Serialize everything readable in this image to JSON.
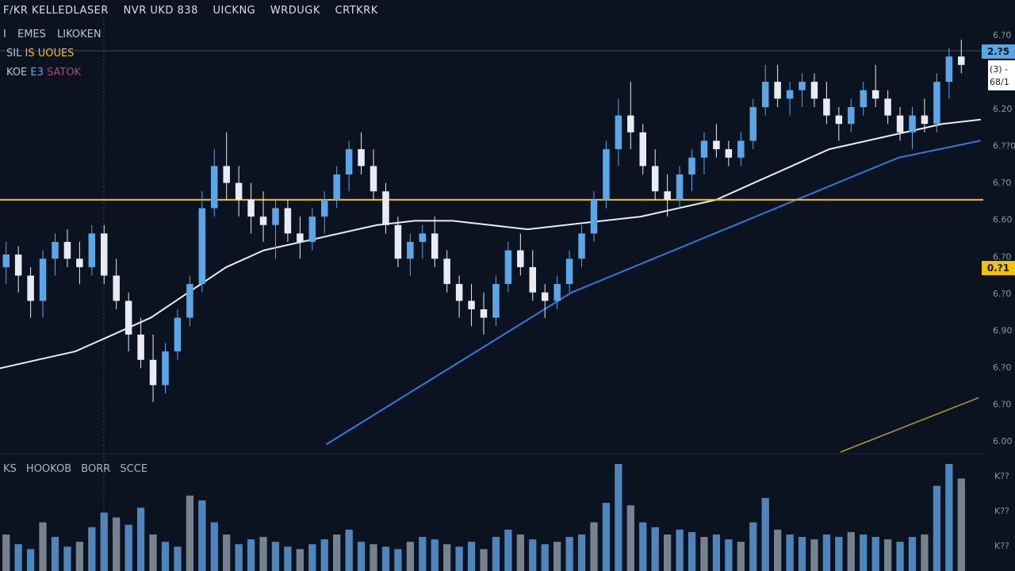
{
  "header": {
    "title_parts": [
      "F/KR KELLEDLASER",
      "NVR UKD 838",
      "UICKNG",
      "WRDUGK",
      "CRTKRK"
    ],
    "row2": [
      "I",
      "EMES",
      "LIKOKEN"
    ],
    "row3": {
      "prefix": "SIL",
      "value": "IS UOUES"
    },
    "row4": {
      "prefix": "KOE",
      "value_a": "E3",
      "value_b": "SATOK"
    }
  },
  "volume_label": [
    "KS",
    "HOOKOB",
    "BORR",
    "SCCE"
  ],
  "price_axis": {
    "labels": [
      "6.?0",
      "6.?2",
      "6.20",
      "6.??0",
      "6.?0",
      "6.60",
      "6.?0",
      "6.?0",
      "6.90",
      "6.?0",
      "6.?0",
      "6.00"
    ],
    "volume_labels": [
      "K??",
      "K??",
      "K??"
    ]
  },
  "tags": {
    "last_price": "2.?5",
    "mini_line1": "(3) -",
    "mini_line2": "68/1",
    "hline_price": "0.?1"
  },
  "colors": {
    "background": "#0b1220",
    "up_candle": "#5aa6e6",
    "down_candle": "#e8ecf2",
    "ma_fast": "#e8ecf2",
    "ma_slow": "#2f7ae0",
    "ma_long": "#b89a2a",
    "hline": "#f2c400",
    "volume_up": "#5a9bd8",
    "volume_down": "#8c96a3"
  },
  "chart_data": {
    "type": "candlestick",
    "y_range": [
      6.0,
      6.96
    ],
    "horizontal_line": 6.58,
    "candles": [
      [
        6.42,
        6.48,
        6.38,
        6.45
      ],
      [
        6.45,
        6.47,
        6.36,
        6.4
      ],
      [
        6.4,
        6.42,
        6.3,
        6.34
      ],
      [
        6.34,
        6.46,
        6.3,
        6.44
      ],
      [
        6.44,
        6.5,
        6.4,
        6.48
      ],
      [
        6.48,
        6.51,
        6.42,
        6.44
      ],
      [
        6.44,
        6.48,
        6.38,
        6.42
      ],
      [
        6.42,
        6.52,
        6.4,
        6.5
      ],
      [
        6.5,
        6.52,
        6.38,
        6.4
      ],
      [
        6.4,
        6.44,
        6.32,
        6.34
      ],
      [
        6.34,
        6.36,
        6.22,
        6.26
      ],
      [
        6.26,
        6.3,
        6.18,
        6.2
      ],
      [
        6.2,
        6.26,
        6.1,
        6.14
      ],
      [
        6.14,
        6.24,
        6.12,
        6.22
      ],
      [
        6.22,
        6.32,
        6.2,
        6.3
      ],
      [
        6.3,
        6.4,
        6.28,
        6.38
      ],
      [
        6.38,
        6.6,
        6.36,
        6.56
      ],
      [
        6.56,
        6.7,
        6.54,
        6.66
      ],
      [
        6.66,
        6.74,
        6.58,
        6.62
      ],
      [
        6.62,
        6.66,
        6.54,
        6.58
      ],
      [
        6.58,
        6.62,
        6.5,
        6.54
      ],
      [
        6.54,
        6.6,
        6.48,
        6.52
      ],
      [
        6.52,
        6.58,
        6.44,
        6.56
      ],
      [
        6.56,
        6.58,
        6.48,
        6.5
      ],
      [
        6.5,
        6.54,
        6.44,
        6.48
      ],
      [
        6.48,
        6.56,
        6.46,
        6.54
      ],
      [
        6.54,
        6.6,
        6.5,
        6.58
      ],
      [
        6.58,
        6.66,
        6.56,
        6.64
      ],
      [
        6.64,
        6.72,
        6.6,
        6.7
      ],
      [
        6.7,
        6.74,
        6.64,
        6.66
      ],
      [
        6.66,
        6.7,
        6.58,
        6.6
      ],
      [
        6.6,
        6.62,
        6.5,
        6.52
      ],
      [
        6.52,
        6.54,
        6.42,
        6.44
      ],
      [
        6.44,
        6.5,
        6.4,
        6.48
      ],
      [
        6.48,
        6.52,
        6.44,
        6.5
      ],
      [
        6.5,
        6.54,
        6.42,
        6.44
      ],
      [
        6.44,
        6.46,
        6.36,
        6.38
      ],
      [
        6.38,
        6.4,
        6.3,
        6.34
      ],
      [
        6.34,
        6.38,
        6.28,
        6.32
      ],
      [
        6.32,
        6.36,
        6.26,
        6.3
      ],
      [
        6.3,
        6.4,
        6.28,
        6.38
      ],
      [
        6.38,
        6.48,
        6.36,
        6.46
      ],
      [
        6.46,
        6.5,
        6.4,
        6.42
      ],
      [
        6.42,
        6.46,
        6.34,
        6.36
      ],
      [
        6.36,
        6.38,
        6.3,
        6.34
      ],
      [
        6.34,
        6.4,
        6.32,
        6.38
      ],
      [
        6.38,
        6.46,
        6.36,
        6.44
      ],
      [
        6.44,
        6.52,
        6.42,
        6.5
      ],
      [
        6.5,
        6.6,
        6.48,
        6.58
      ],
      [
        6.58,
        6.72,
        6.56,
        6.7
      ],
      [
        6.7,
        6.82,
        6.66,
        6.78
      ],
      [
        6.78,
        6.86,
        6.7,
        6.74
      ],
      [
        6.74,
        6.76,
        6.64,
        6.66
      ],
      [
        6.66,
        6.7,
        6.58,
        6.6
      ],
      [
        6.6,
        6.64,
        6.54,
        6.58
      ],
      [
        6.58,
        6.66,
        6.56,
        6.64
      ],
      [
        6.64,
        6.7,
        6.6,
        6.68
      ],
      [
        6.68,
        6.74,
        6.64,
        6.72
      ],
      [
        6.72,
        6.76,
        6.68,
        6.7
      ],
      [
        6.7,
        6.72,
        6.66,
        6.68
      ],
      [
        6.68,
        6.74,
        6.66,
        6.72
      ],
      [
        6.72,
        6.82,
        6.7,
        6.8
      ],
      [
        6.8,
        6.9,
        6.78,
        6.86
      ],
      [
        6.86,
        6.9,
        6.8,
        6.82
      ],
      [
        6.82,
        6.86,
        6.78,
        6.84
      ],
      [
        6.84,
        6.88,
        6.8,
        6.86
      ],
      [
        6.86,
        6.88,
        6.8,
        6.82
      ],
      [
        6.82,
        6.86,
        6.76,
        6.78
      ],
      [
        6.78,
        6.8,
        6.72,
        6.76
      ],
      [
        6.76,
        6.82,
        6.74,
        6.8
      ],
      [
        6.8,
        6.86,
        6.78,
        6.84
      ],
      [
        6.84,
        6.9,
        6.8,
        6.82
      ],
      [
        6.82,
        6.84,
        6.76,
        6.78
      ],
      [
        6.78,
        6.8,
        6.72,
        6.74
      ],
      [
        6.74,
        6.8,
        6.7,
        6.78
      ],
      [
        6.78,
        6.82,
        6.74,
        6.76
      ],
      [
        6.76,
        6.88,
        6.74,
        6.86
      ],
      [
        6.86,
        6.94,
        6.82,
        6.92
      ],
      [
        6.92,
        6.96,
        6.88,
        6.9
      ]
    ],
    "ma_fast": [
      6.18,
      6.2,
      6.22,
      6.26,
      6.3,
      6.36,
      6.42,
      6.46,
      6.48,
      6.5,
      6.52,
      6.53,
      6.53,
      6.52,
      6.51,
      6.52,
      6.53,
      6.54,
      6.56,
      6.58,
      6.62,
      6.66,
      6.7,
      6.72,
      6.74,
      6.76,
      6.77
    ],
    "ma_slow": [
      null,
      null,
      null,
      null,
      null,
      null,
      null,
      null,
      6.0,
      6.06,
      6.12,
      6.18,
      6.24,
      6.3,
      6.36,
      6.4,
      6.44,
      6.48,
      6.52,
      6.56,
      6.6,
      6.64,
      6.68,
      6.7,
      6.72
    ],
    "ma_long_end": [
      6.0,
      6.11
    ],
    "volume": [
      30,
      22,
      18,
      40,
      28,
      20,
      24,
      36,
      48,
      44,
      38,
      52,
      30,
      24,
      20,
      62,
      58,
      40,
      30,
      22,
      26,
      28,
      24,
      20,
      18,
      22,
      26,
      30,
      34,
      24,
      22,
      20,
      18,
      24,
      28,
      26,
      22,
      20,
      24,
      18,
      28,
      34,
      30,
      26,
      22,
      24,
      28,
      30,
      40,
      56,
      88,
      54,
      40,
      36,
      30,
      34,
      32,
      28,
      30,
      26,
      24,
      40,
      60,
      34,
      30,
      28,
      26,
      30,
      28,
      32,
      30,
      28,
      26,
      24,
      28,
      30,
      70,
      88,
      76
    ]
  }
}
